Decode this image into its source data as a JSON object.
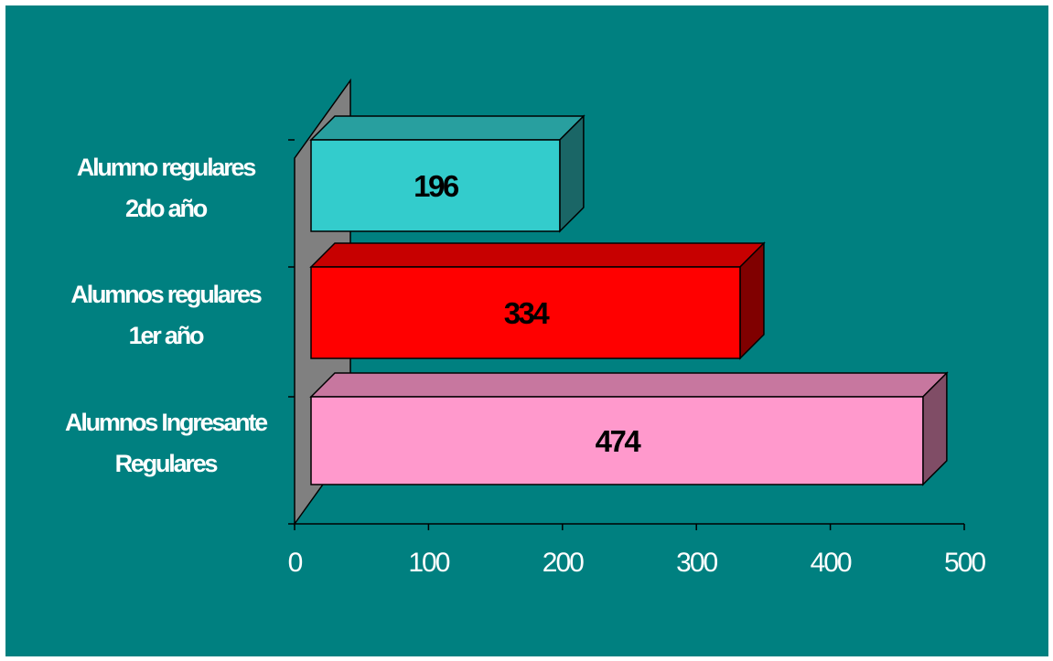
{
  "chart_data": {
    "type": "bar",
    "orientation": "horizontal",
    "three_d": true,
    "categories": [
      [
        "Alumnos Ingresante",
        "Regulares"
      ],
      [
        "Alumnos regulares",
        "1er año"
      ],
      [
        "Alumno regulares",
        "2do año"
      ]
    ],
    "values": [
      474,
      334,
      196
    ],
    "bar_colors": [
      "#ff99cc",
      "#ff0000",
      "#33cccc"
    ],
    "xlim": [
      0,
      500
    ],
    "xticks": [
      0,
      100,
      200,
      300,
      400,
      500
    ],
    "title": "",
    "xlabel": "",
    "ylabel": "",
    "grid": false,
    "legend": "none",
    "background_color": "#008080",
    "wall_color": "#808080"
  }
}
